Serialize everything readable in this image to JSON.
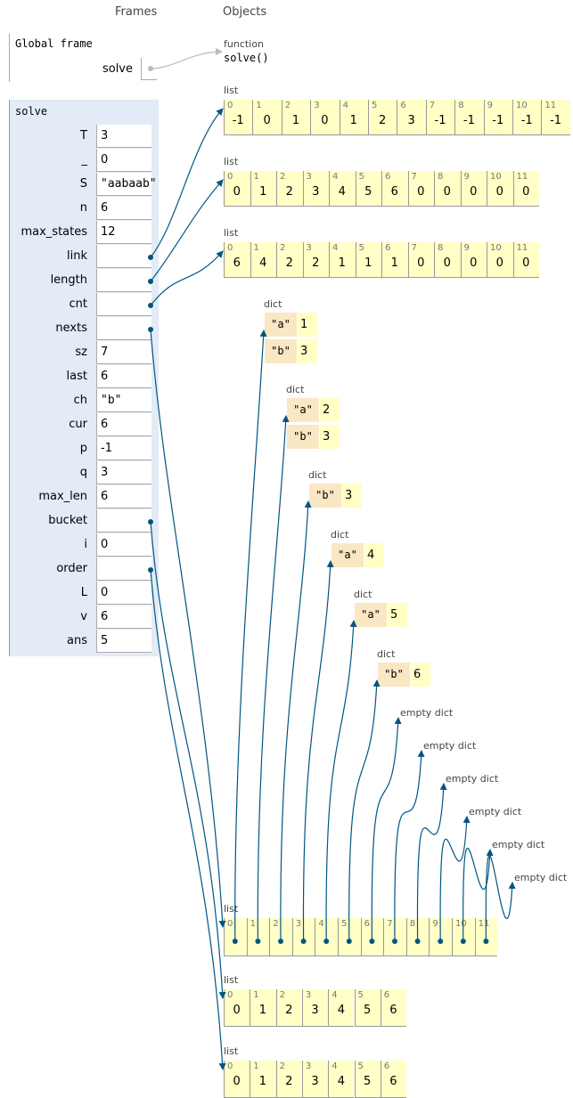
{
  "headers": {
    "frames": "Frames",
    "objects": "Objects"
  },
  "global_frame": {
    "title": "Global frame",
    "variables": [
      {
        "name": "solve"
      }
    ]
  },
  "function": {
    "label": "function",
    "name": "solve()"
  },
  "solve_frame": {
    "title": "solve",
    "variables": [
      {
        "name": "T",
        "value": 3
      },
      {
        "name": "_",
        "value": 0
      },
      {
        "name": "S",
        "value": "\"aabaab\""
      },
      {
        "name": "n",
        "value": 6
      },
      {
        "name": "max_states",
        "value": 12
      },
      {
        "name": "link"
      },
      {
        "name": "length"
      },
      {
        "name": "cnt"
      },
      {
        "name": "nexts"
      },
      {
        "name": "sz",
        "value": 7
      },
      {
        "name": "last",
        "value": 6
      },
      {
        "name": "ch",
        "value": "\"b\""
      },
      {
        "name": "cur",
        "value": 6
      },
      {
        "name": "p",
        "value": -1
      },
      {
        "name": "q",
        "value": 3
      },
      {
        "name": "max_len",
        "value": 6
      },
      {
        "name": "bucket"
      },
      {
        "name": "i",
        "value": 0
      },
      {
        "name": "order"
      },
      {
        "name": "L",
        "value": 0
      },
      {
        "name": "v",
        "value": 6
      },
      {
        "name": "ans",
        "value": 5
      }
    ]
  },
  "lists": [
    {
      "label": "list",
      "indices": [
        0,
        1,
        2,
        3,
        4,
        5,
        6,
        7,
        8,
        9,
        10,
        11
      ],
      "values": [
        -1,
        0,
        1,
        0,
        1,
        2,
        3,
        -1,
        -1,
        -1,
        -1,
        -1
      ]
    },
    {
      "label": "list",
      "indices": [
        0,
        1,
        2,
        3,
        4,
        5,
        6,
        7,
        8,
        9,
        10,
        11
      ],
      "values": [
        0,
        1,
        2,
        3,
        4,
        5,
        6,
        0,
        0,
        0,
        0,
        0
      ]
    },
    {
      "label": "list",
      "indices": [
        0,
        1,
        2,
        3,
        4,
        5,
        6,
        7,
        8,
        9,
        10,
        11
      ],
      "values": [
        6,
        4,
        2,
        2,
        1,
        1,
        1,
        0,
        0,
        0,
        0,
        0
      ]
    },
    {
      "label": "list",
      "indices": [
        0,
        1,
        2,
        3,
        4,
        5,
        6,
        7,
        8,
        9,
        10,
        11
      ]
    },
    {
      "label": "list",
      "indices": [
        0,
        1,
        2,
        3,
        4,
        5,
        6
      ],
      "values": [
        0,
        1,
        2,
        3,
        4,
        5,
        6
      ]
    },
    {
      "label": "list",
      "indices": [
        0,
        1,
        2,
        3,
        4,
        5,
        6
      ],
      "values": [
        0,
        1,
        2,
        3,
        4,
        5,
        6
      ]
    }
  ],
  "dicts": [
    {
      "label": "dict",
      "entries": [
        {
          "key": "\"a\"",
          "value": 1
        },
        {
          "key": "\"b\"",
          "value": 3
        }
      ]
    },
    {
      "label": "dict",
      "entries": [
        {
          "key": "\"a\"",
          "value": 2
        },
        {
          "key": "\"b\"",
          "value": 3
        }
      ]
    },
    {
      "label": "dict",
      "entries": [
        {
          "key": "\"b\"",
          "value": 3
        }
      ]
    },
    {
      "label": "dict",
      "entries": [
        {
          "key": "\"a\"",
          "value": 4
        }
      ]
    },
    {
      "label": "dict",
      "entries": [
        {
          "key": "\"a\"",
          "value": 5
        }
      ]
    },
    {
      "label": "dict",
      "entries": [
        {
          "key": "\"b\"",
          "value": 6
        }
      ]
    },
    {
      "label": "empty dict"
    },
    {
      "label": "empty dict"
    },
    {
      "label": "empty dict"
    },
    {
      "label": "empty dict"
    },
    {
      "label": "empty dict"
    },
    {
      "label": "empty dict"
    }
  ]
}
